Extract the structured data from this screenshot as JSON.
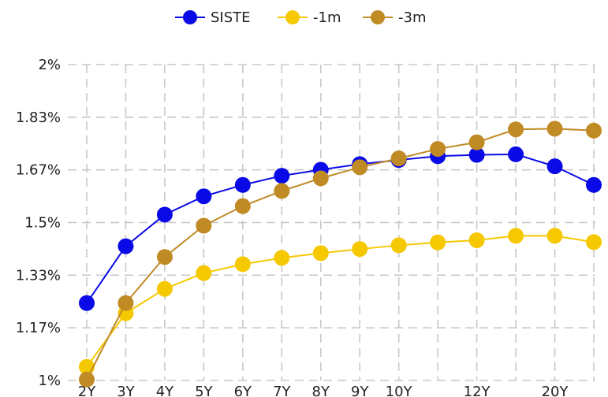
{
  "chart_data": {
    "type": "line",
    "title": "",
    "xlabel": "",
    "ylabel": "",
    "x_positions": [
      2,
      3,
      4,
      5,
      6,
      7,
      8,
      9,
      10,
      11,
      12,
      13,
      14,
      15
    ],
    "x_tick_labels": [
      "2Y",
      "3Y",
      "4Y",
      "5Y",
      "6Y",
      "7Y",
      "8Y",
      "9Y",
      "10Y",
      "",
      "12Y",
      "",
      "20Y",
      ""
    ],
    "ylim": [
      1.0,
      2.0
    ],
    "y_ticks": [
      1.0,
      1.1667,
      1.3333,
      1.5,
      1.6667,
      1.8333,
      2.0
    ],
    "y_tick_labels": [
      "1%",
      "1.17%",
      "1.33%",
      "1.5%",
      "1.67%",
      "1.83%",
      "2%"
    ],
    "grid": true,
    "legend_position": "top-center",
    "series": [
      {
        "name": "SISTE",
        "color": "#0a0ae6",
        "values": [
          1.245,
          1.425,
          1.525,
          1.583,
          1.619,
          1.648,
          1.667,
          1.685,
          1.698,
          1.71,
          1.714,
          1.716,
          1.678,
          1.619
        ]
      },
      {
        "name": "-1m",
        "color": "#f5c800",
        "values": [
          1.043,
          1.213,
          1.29,
          1.34,
          1.368,
          1.388,
          1.403,
          1.416,
          1.428,
          1.437,
          1.444,
          1.458,
          1.458,
          1.438
        ]
      },
      {
        "name": "-3m",
        "color": "#c08a25",
        "values": [
          1.003,
          1.245,
          1.391,
          1.49,
          1.552,
          1.6,
          1.64,
          1.675,
          1.703,
          1.733,
          1.754,
          1.795,
          1.797,
          1.791
        ]
      }
    ]
  }
}
